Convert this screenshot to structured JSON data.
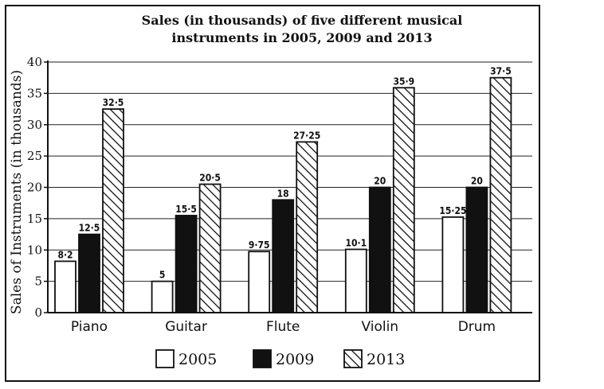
{
  "chart_data": {
    "type": "bar",
    "title_line1": "Sales (in thousands) of five different musical",
    "title_line2": "instruments in 2005, 2009 and 2013",
    "xlabel": "",
    "ylabel": "Sales of Instruments (in thousands)",
    "ylim": [
      0,
      40
    ],
    "yticks": [
      0,
      5,
      10,
      15,
      20,
      25,
      30,
      35,
      40
    ],
    "grid": true,
    "legend_position": "bottom",
    "categories": [
      "Piano",
      "Guitar",
      "Flute",
      "Violin",
      "Drum"
    ],
    "series": [
      {
        "name": "2005",
        "style": "white",
        "values": [
          8.2,
          5,
          9.75,
          10.1,
          15.25
        ],
        "labels": [
          "8·2",
          "5",
          "9·75",
          "10·1",
          "15·25"
        ]
      },
      {
        "name": "2009",
        "style": "black",
        "values": [
          12.5,
          15.5,
          18,
          20,
          20
        ],
        "labels": [
          "12·5",
          "15·5",
          "18",
          "20",
          "20"
        ]
      },
      {
        "name": "2013",
        "style": "hatched",
        "values": [
          32.5,
          20.5,
          27.25,
          35.9,
          37.5
        ],
        "labels": [
          "32·5",
          "20·5",
          "27·25",
          "35·9",
          "37·5"
        ]
      }
    ]
  }
}
